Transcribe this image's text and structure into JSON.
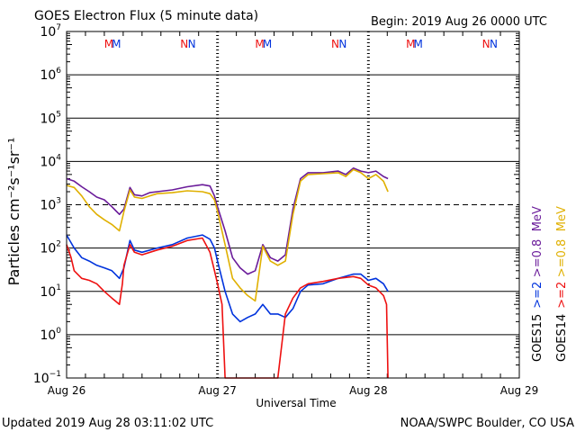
{
  "header": {
    "title": "GOES Electron Flux (5 minute data)",
    "begin": "Begin: 2019 Aug 26 0000 UTC"
  },
  "footer": {
    "updated": "Updated 2019 Aug 28 03:11:02 UTC",
    "credit": "NOAA/SWPC Boulder, CO USA"
  },
  "colors": {
    "goes15_low": "#0033dd",
    "goes14_low": "#ee1111",
    "goes15_high": "#6a1b9a",
    "goes14_high": "#e0b000",
    "background": "#ffffff",
    "axis": "#000000"
  },
  "chart_data": {
    "type": "line",
    "title": "GOES Electron Flux (5 minute data)",
    "xlabel": "Universal Time",
    "ylabel": "Particles cm⁻²s⁻¹sr⁻¹",
    "y_scale": "log",
    "ylim": [
      0.1,
      10000000
    ],
    "xlim_days": [
      0,
      3
    ],
    "x_ticks": [
      {
        "day": 0,
        "label": "Aug 26"
      },
      {
        "day": 1,
        "label": "Aug 27"
      },
      {
        "day": 2,
        "label": "Aug 28"
      },
      {
        "day": 3,
        "label": "Aug 29"
      }
    ],
    "y_ticks": [
      {
        "exp": 7,
        "base": "10",
        "sup": "7"
      },
      {
        "exp": 6,
        "base": "10",
        "sup": "6"
      },
      {
        "exp": 5,
        "base": "10",
        "sup": "5"
      },
      {
        "exp": 4,
        "base": "10",
        "sup": "4"
      },
      {
        "exp": 3,
        "base": "10",
        "sup": "3"
      },
      {
        "exp": 2,
        "base": "10",
        "sup": "2"
      },
      {
        "exp": 1,
        "base": "10",
        "sup": "1"
      },
      {
        "exp": 0,
        "base": "10",
        "sup": "0"
      },
      {
        "exp": -1,
        "base": "10",
        "sup": "−1"
      }
    ],
    "threshold_dashed": 1000,
    "midnight_markers_day": [
      1,
      2
    ],
    "noon_marks": [
      {
        "day": 0.28,
        "text": "M",
        "series": "goes14"
      },
      {
        "day": 0.33,
        "text": "M",
        "series": "goes15"
      },
      {
        "day": 0.78,
        "text": "N",
        "series": "goes14"
      },
      {
        "day": 0.83,
        "text": "N",
        "series": "goes15"
      },
      {
        "day": 1.28,
        "text": "M",
        "series": "goes14"
      },
      {
        "day": 1.33,
        "text": "M",
        "series": "goes15"
      },
      {
        "day": 1.78,
        "text": "N",
        "series": "goes14"
      },
      {
        "day": 1.83,
        "text": "N",
        "series": "goes15"
      },
      {
        "day": 2.28,
        "text": "M",
        "series": "goes14"
      },
      {
        "day": 2.33,
        "text": "M",
        "series": "goes15"
      },
      {
        "day": 2.78,
        "text": "N",
        "series": "goes14"
      },
      {
        "day": 2.83,
        "text": "N",
        "series": "goes15"
      }
    ],
    "legend": [
      {
        "label": "GOES15",
        "color_key": "axis"
      },
      {
        "label": ">=2",
        "color_key": "goes15_low"
      },
      {
        "label": ">=0.8",
        "color_key": "goes15_high"
      },
      {
        "label": "MeV",
        "color_key": "goes15_high"
      },
      {
        "label": "GOES14",
        "color_key": "axis"
      },
      {
        "label": ">=2",
        "color_key": "goes14_low"
      },
      {
        "label": ">=0.8",
        "color_key": "goes14_high"
      },
      {
        "label": "MeV",
        "color_key": "goes14_high"
      }
    ],
    "series": [
      {
        "name": "GOES15 >=0.8 MeV",
        "color_key": "goes15_high",
        "x": [
          0.0,
          0.05,
          0.1,
          0.15,
          0.2,
          0.25,
          0.3,
          0.35,
          0.38,
          0.42,
          0.45,
          0.5,
          0.55,
          0.6,
          0.7,
          0.8,
          0.9,
          0.95,
          0.98,
          1.0,
          1.05,
          1.1,
          1.15,
          1.2,
          1.25,
          1.3,
          1.35,
          1.4,
          1.45,
          1.5,
          1.55,
          1.6,
          1.7,
          1.8,
          1.85,
          1.9,
          1.95,
          2.0,
          2.05,
          2.1,
          2.13
        ],
        "y": [
          4000,
          3500,
          2600,
          2000,
          1500,
          1300,
          900,
          600,
          800,
          2500,
          1700,
          1600,
          1900,
          2000,
          2200,
          2600,
          2900,
          2700,
          1600,
          900,
          250,
          60,
          35,
          25,
          30,
          120,
          60,
          50,
          70,
          800,
          4000,
          5500,
          5500,
          6000,
          5000,
          7000,
          6000,
          5500,
          6000,
          4500,
          4000
        ]
      },
      {
        "name": "GOES14 >=0.8 MeV",
        "color_key": "goes14_high",
        "x": [
          0.0,
          0.05,
          0.1,
          0.15,
          0.2,
          0.25,
          0.3,
          0.35,
          0.38,
          0.42,
          0.45,
          0.5,
          0.55,
          0.6,
          0.7,
          0.8,
          0.9,
          0.95,
          0.98,
          1.0,
          1.05,
          1.1,
          1.15,
          1.2,
          1.25,
          1.3,
          1.35,
          1.4,
          1.45,
          1.5,
          1.55,
          1.6,
          1.7,
          1.8,
          1.85,
          1.9,
          1.95,
          2.0,
          2.05,
          2.1,
          2.13
        ],
        "y": [
          2800,
          2500,
          1600,
          900,
          600,
          450,
          350,
          250,
          700,
          2200,
          1500,
          1400,
          1600,
          1800,
          1900,
          2100,
          2000,
          1800,
          1300,
          700,
          120,
          20,
          12,
          8,
          6,
          110,
          50,
          40,
          50,
          600,
          3500,
          5000,
          5200,
          5500,
          4500,
          6500,
          5500,
          4000,
          5000,
          3500,
          2000
        ]
      },
      {
        "name": "GOES15 >=2 MeV",
        "color_key": "goes15_low",
        "x": [
          0.0,
          0.05,
          0.1,
          0.15,
          0.2,
          0.25,
          0.3,
          0.35,
          0.38,
          0.42,
          0.45,
          0.5,
          0.6,
          0.7,
          0.8,
          0.9,
          0.95,
          0.98,
          1.0,
          1.05,
          1.1,
          1.15,
          1.2,
          1.25,
          1.3,
          1.35,
          1.4,
          1.45,
          1.5,
          1.55,
          1.6,
          1.7,
          1.8,
          1.9,
          1.95,
          2.0,
          2.05,
          2.1,
          2.13
        ],
        "y": [
          200,
          100,
          60,
          50,
          40,
          35,
          30,
          20,
          35,
          150,
          90,
          80,
          100,
          120,
          170,
          200,
          160,
          100,
          50,
          10,
          3,
          2,
          2.5,
          3,
          5,
          3,
          3,
          2.5,
          4,
          10,
          14,
          15,
          20,
          25,
          25,
          18,
          20,
          15,
          10
        ]
      },
      {
        "name": "GOES14 >=2 MeV",
        "color_key": "goes14_low",
        "x": [
          0.0,
          0.03,
          0.05,
          0.1,
          0.15,
          0.2,
          0.25,
          0.3,
          0.35,
          0.37,
          0.38,
          0.42,
          0.45,
          0.5,
          0.6,
          0.7,
          0.8,
          0.9,
          0.95,
          0.98,
          1.0,
          1.03,
          1.05,
          1.1,
          1.2,
          1.3,
          1.4,
          1.45,
          1.5,
          1.55,
          1.6,
          1.7,
          1.8,
          1.9,
          1.95,
          2.0,
          2.05,
          2.1,
          2.12,
          2.13
        ],
        "y": [
          120,
          60,
          30,
          20,
          18,
          15,
          10,
          7,
          5,
          15,
          40,
          120,
          80,
          70,
          90,
          110,
          150,
          170,
          80,
          30,
          15,
          5,
          0.1,
          0.1,
          0.1,
          0.1,
          0.1,
          3,
          7,
          12,
          15,
          17,
          20,
          22,
          20,
          14,
          12,
          8,
          5,
          0.1
        ]
      }
    ]
  }
}
